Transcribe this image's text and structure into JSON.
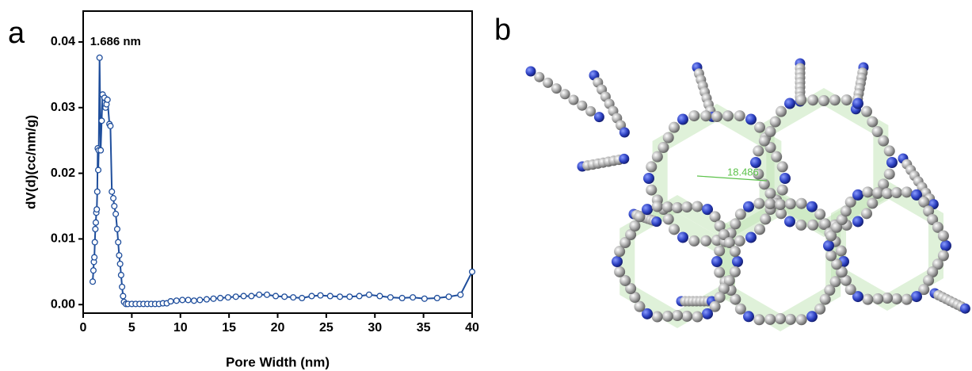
{
  "panel_labels": [
    "a",
    "b"
  ],
  "structure": {
    "measurement": "18.486"
  },
  "chart_data": {
    "type": "line",
    "x_label": "Pore Width (nm)",
    "y_label": "dV(d)(cc/nm/g)",
    "annotation": "1.686 nm",
    "x": [
      0.98,
      1.05,
      1.1,
      1.15,
      1.2,
      1.25,
      1.3,
      1.35,
      1.4,
      1.45,
      1.5,
      1.55,
      1.6,
      1.686,
      1.8,
      1.9,
      2.0,
      2.2,
      2.3,
      2.4,
      2.5,
      2.7,
      2.8,
      2.95,
      3.1,
      3.2,
      3.35,
      3.5,
      3.6,
      3.7,
      3.8,
      3.9,
      4.0,
      4.1,
      4.2,
      4.4,
      4.6,
      5.0,
      5.4,
      5.8,
      6.2,
      6.6,
      7.0,
      7.4,
      7.8,
      8.2,
      8.6,
      9.0,
      9.6,
      10.2,
      10.8,
      11.4,
      12.0,
      12.7,
      13.4,
      14.1,
      14.9,
      15.7,
      16.5,
      17.3,
      18.1,
      18.9,
      19.8,
      20.7,
      21.6,
      22.5,
      23.5,
      24.4,
      25.4,
      26.4,
      27.4,
      28.4,
      29.4,
      30.5,
      31.6,
      32.8,
      33.9,
      35.1,
      36.4,
      37.6,
      38.8,
      40
    ],
    "series": [
      {
        "color": "#1f4e9c",
        "values": [
          0.0035,
          0.0052,
          0.0065,
          0.0072,
          0.0095,
          0.0115,
          0.0125,
          0.014,
          0.0145,
          0.0172,
          0.0238,
          0.0205,
          0.0235,
          0.0376,
          0.0235,
          0.028,
          0.032,
          0.0315,
          0.03,
          0.0305,
          0.0312,
          0.0275,
          0.0272,
          0.0172,
          0.0162,
          0.015,
          0.0138,
          0.0115,
          0.0095,
          0.0075,
          0.0062,
          0.0045,
          0.0027,
          0.0013,
          0.0004,
          0.0001,
          0.0001,
          0.0001,
          0.0001,
          0.0001,
          0.0001,
          0.0001,
          0.0001,
          0.0001,
          0.0001,
          0.0002,
          0.0002,
          0.0005,
          0.0006,
          0.0007,
          0.0007,
          0.0006,
          0.0007,
          0.0008,
          0.0009,
          0.001,
          0.0011,
          0.0012,
          0.0013,
          0.0013,
          0.0015,
          0.0015,
          0.0013,
          0.0012,
          0.0011,
          0.001,
          0.0013,
          0.0014,
          0.0013,
          0.0012,
          0.0012,
          0.0013,
          0.0015,
          0.0013,
          0.0011,
          0.001,
          0.0011,
          0.0009,
          0.001,
          0.0012,
          0.0015,
          0.005
        ]
      }
    ],
    "xlim": [
      0,
      40
    ],
    "xticks": [
      0,
      5,
      10,
      15,
      20,
      25,
      30,
      35,
      40
    ],
    "ylim": [
      -0.0013,
      0.0447
    ],
    "yticks": [
      {
        "value": 0,
        "label": "0.00"
      },
      0.01,
      0.02,
      0.03,
      0.04
    ]
  }
}
